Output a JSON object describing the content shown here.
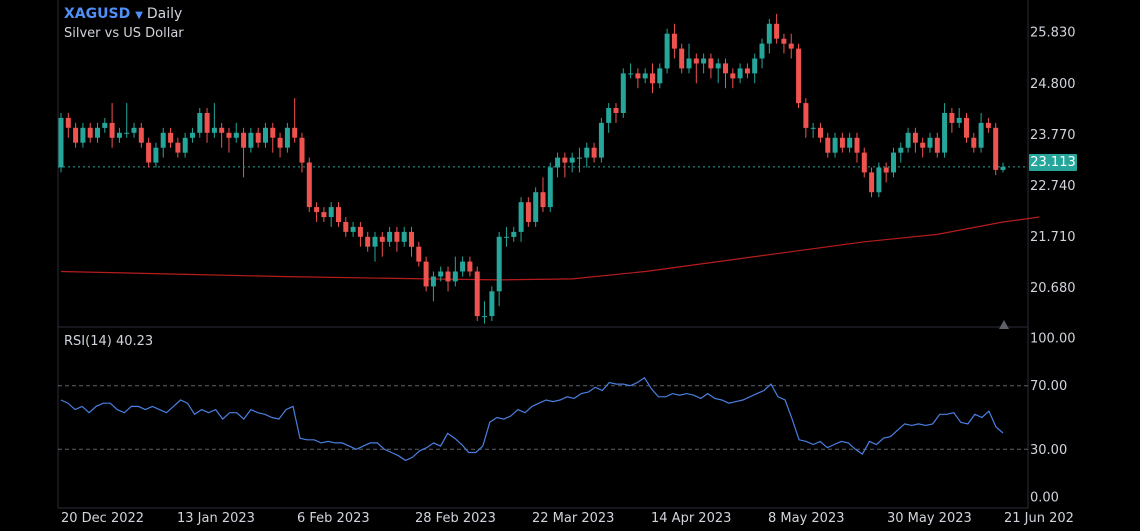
{
  "header": {
    "symbol": "XAGUSD",
    "interval": "Daily",
    "description": "Silver vs US Dollar"
  },
  "rsi_panel": {
    "label": "RSI(14)",
    "value": "40.23"
  },
  "last_price_label": "23.113",
  "colors": {
    "up": "#26a69a",
    "down": "#ef5350",
    "ma": "#b71c1c",
    "rsi": "#4a7fe0",
    "accent": "#4f8ff7"
  },
  "chart_data": [
    {
      "type": "candlestick",
      "title": "XAGUSD Daily",
      "subtitle": "Silver vs US Dollar",
      "x_tick_labels": [
        "20 Dec 2022",
        "13 Jan 2023",
        "6 Feb 2023",
        "28 Feb 2023",
        "22 Mar 2023",
        "14 Apr 2023",
        "8 May 2023",
        "30 May 2023",
        "21 Jun 202"
      ],
      "y_tick_labels": [
        "25.830",
        "24.800",
        "23.770",
        "22.740",
        "21.710",
        "20.680"
      ],
      "ylim": [
        19.9,
        26.4
      ],
      "last_price": 23.113,
      "series": [
        {
          "name": "candles",
          "ohlc": [
            [
              23.1,
              24.1,
              24.2,
              23.0
            ],
            [
              24.1,
              23.9,
              24.2,
              23.7
            ],
            [
              23.9,
              23.6,
              24.0,
              23.5
            ],
            [
              23.6,
              23.9,
              24.0,
              23.5
            ],
            [
              23.9,
              23.7,
              24.0,
              23.6
            ],
            [
              23.7,
              23.9,
              24.0,
              23.6
            ],
            [
              23.9,
              24.0,
              24.1,
              23.8
            ],
            [
              24.0,
              23.7,
              24.4,
              23.5
            ],
            [
              23.7,
              23.8,
              23.9,
              23.6
            ],
            [
              23.8,
              23.8,
              24.4,
              23.7
            ],
            [
              23.8,
              23.9,
              24.0,
              23.7
            ],
            [
              23.9,
              23.6,
              24.0,
              23.5
            ],
            [
              23.6,
              23.2,
              23.7,
              23.1
            ],
            [
              23.2,
              23.5,
              23.6,
              23.1
            ],
            [
              23.5,
              23.8,
              23.9,
              23.3
            ],
            [
              23.8,
              23.6,
              23.9,
              23.5
            ],
            [
              23.6,
              23.4,
              23.7,
              23.3
            ],
            [
              23.4,
              23.7,
              23.8,
              23.3
            ],
            [
              23.7,
              23.8,
              23.9,
              23.6
            ],
            [
              23.8,
              24.2,
              24.3,
              23.7
            ],
            [
              24.2,
              23.8,
              24.3,
              23.6
            ],
            [
              23.8,
              23.9,
              24.4,
              23.7
            ],
            [
              23.9,
              23.8,
              24.0,
              23.5
            ],
            [
              23.8,
              23.7,
              23.9,
              23.4
            ],
            [
              23.7,
              23.8,
              24.0,
              23.6
            ],
            [
              23.8,
              23.5,
              23.9,
              22.9
            ],
            [
              23.5,
              23.8,
              23.9,
              23.4
            ],
            [
              23.8,
              23.6,
              23.9,
              23.5
            ],
            [
              23.6,
              23.9,
              24.0,
              23.5
            ],
            [
              23.9,
              23.7,
              24.0,
              23.4
            ],
            [
              23.7,
              23.5,
              23.8,
              23.3
            ],
            [
              23.5,
              23.9,
              24.0,
              23.4
            ],
            [
              23.9,
              23.7,
              24.5,
              23.6
            ],
            [
              23.7,
              23.2,
              23.8,
              23.0
            ],
            [
              23.2,
              22.3,
              23.3,
              22.2
            ],
            [
              22.3,
              22.2,
              22.4,
              22.0
            ],
            [
              22.2,
              22.1,
              22.3,
              22.0
            ],
            [
              22.1,
              22.3,
              22.4,
              21.9
            ],
            [
              22.3,
              22.0,
              22.4,
              21.9
            ],
            [
              22.0,
              21.8,
              22.1,
              21.7
            ],
            [
              21.8,
              21.9,
              22.0,
              21.7
            ],
            [
              21.9,
              21.7,
              22.0,
              21.5
            ],
            [
              21.7,
              21.5,
              21.8,
              21.4
            ],
            [
              21.5,
              21.7,
              21.8,
              21.2
            ],
            [
              21.7,
              21.6,
              21.8,
              21.3
            ],
            [
              21.6,
              21.8,
              21.9,
              21.5
            ],
            [
              21.8,
              21.6,
              21.9,
              21.4
            ],
            [
              21.6,
              21.8,
              21.9,
              21.5
            ],
            [
              21.8,
              21.5,
              21.9,
              21.3
            ],
            [
              21.5,
              21.2,
              21.6,
              21.1
            ],
            [
              21.2,
              20.7,
              21.3,
              20.6
            ],
            [
              20.7,
              20.9,
              21.0,
              20.4
            ],
            [
              20.9,
              21.0,
              21.1,
              20.8
            ],
            [
              21.0,
              20.8,
              21.1,
              20.6
            ],
            [
              20.8,
              21.0,
              21.3,
              20.7
            ],
            [
              21.0,
              21.2,
              21.3,
              20.9
            ],
            [
              21.2,
              21.0,
              21.3,
              20.9
            ],
            [
              21.0,
              20.1,
              21.1,
              20.0
            ],
            [
              20.1,
              20.1,
              20.4,
              19.95
            ],
            [
              20.1,
              20.6,
              20.7,
              20.0
            ],
            [
              20.6,
              21.7,
              21.8,
              20.3
            ],
            [
              21.7,
              21.7,
              21.9,
              21.5
            ],
            [
              21.7,
              21.8,
              21.9,
              21.6
            ],
            [
              21.8,
              22.4,
              22.5,
              21.6
            ],
            [
              22.4,
              22.0,
              22.5,
              21.9
            ],
            [
              22.0,
              22.6,
              22.7,
              21.9
            ],
            [
              22.6,
              22.3,
              22.9,
              22.2
            ],
            [
              22.3,
              23.1,
              23.2,
              22.2
            ],
            [
              23.1,
              23.3,
              23.4,
              22.9
            ],
            [
              23.3,
              23.2,
              23.4,
              22.9
            ],
            [
              23.2,
              23.3,
              23.4,
              23.0
            ],
            [
              23.3,
              23.3,
              23.5,
              23.0
            ],
            [
              23.3,
              23.5,
              23.6,
              23.1
            ],
            [
              23.5,
              23.3,
              23.6,
              23.2
            ],
            [
              23.3,
              24.0,
              24.1,
              23.2
            ],
            [
              24.0,
              24.3,
              24.4,
              23.8
            ],
            [
              24.3,
              24.2,
              24.4,
              24.0
            ],
            [
              24.2,
              25.0,
              25.1,
              24.1
            ],
            [
              25.0,
              25.0,
              25.2,
              24.9
            ],
            [
              25.0,
              24.9,
              25.1,
              24.7
            ],
            [
              24.9,
              25.0,
              25.1,
              24.8
            ],
            [
              25.0,
              24.8,
              25.2,
              24.6
            ],
            [
              24.8,
              25.1,
              25.2,
              24.7
            ],
            [
              25.1,
              25.8,
              25.9,
              25.0
            ],
            [
              25.8,
              25.5,
              26.0,
              25.3
            ],
            [
              25.5,
              25.1,
              25.6,
              25.0
            ],
            [
              25.1,
              25.3,
              25.6,
              25.0
            ],
            [
              25.3,
              25.2,
              25.4,
              24.8
            ],
            [
              25.2,
              25.3,
              25.4,
              25.0
            ],
            [
              25.3,
              25.1,
              25.4,
              24.9
            ],
            [
              25.1,
              25.2,
              25.3,
              24.8
            ],
            [
              25.2,
              25.0,
              25.3,
              24.7
            ],
            [
              25.0,
              24.9,
              25.1,
              24.7
            ],
            [
              24.9,
              25.1,
              25.2,
              24.8
            ],
            [
              25.1,
              25.0,
              25.2,
              24.9
            ],
            [
              25.0,
              25.3,
              25.4,
              24.8
            ],
            [
              25.3,
              25.6,
              25.7,
              25.1
            ],
            [
              25.6,
              26.0,
              26.1,
              25.4
            ],
            [
              26.0,
              25.7,
              26.2,
              25.6
            ],
            [
              25.7,
              25.6,
              25.8,
              25.4
            ],
            [
              25.6,
              25.5,
              25.8,
              25.3
            ],
            [
              25.5,
              24.4,
              25.6,
              24.3
            ],
            [
              24.4,
              23.9,
              24.5,
              23.7
            ],
            [
              23.9,
              23.9,
              24.0,
              23.7
            ],
            [
              23.9,
              23.7,
              24.0,
              23.6
            ],
            [
              23.7,
              23.4,
              23.8,
              23.3
            ],
            [
              23.4,
              23.7,
              23.8,
              23.3
            ],
            [
              23.7,
              23.5,
              23.8,
              23.4
            ],
            [
              23.5,
              23.7,
              23.8,
              23.4
            ],
            [
              23.7,
              23.4,
              23.8,
              23.2
            ],
            [
              23.4,
              23.0,
              23.5,
              22.9
            ],
            [
              23.0,
              22.6,
              23.1,
              22.5
            ],
            [
              22.6,
              23.1,
              23.2,
              22.5
            ],
            [
              23.1,
              23.0,
              23.2,
              22.8
            ],
            [
              23.0,
              23.4,
              23.5,
              22.9
            ],
            [
              23.4,
              23.5,
              23.6,
              23.2
            ],
            [
              23.5,
              23.8,
              23.9,
              23.4
            ],
            [
              23.8,
              23.6,
              23.9,
              23.4
            ],
            [
              23.6,
              23.5,
              23.7,
              23.3
            ],
            [
              23.5,
              23.7,
              23.8,
              23.4
            ],
            [
              23.7,
              23.4,
              23.8,
              23.3
            ],
            [
              23.4,
              24.2,
              24.4,
              23.3
            ],
            [
              24.2,
              24.0,
              24.3,
              23.8
            ],
            [
              24.0,
              24.1,
              24.3,
              23.9
            ],
            [
              24.1,
              23.7,
              24.2,
              23.6
            ],
            [
              23.7,
              23.5,
              23.8,
              23.4
            ],
            [
              23.5,
              24.0,
              24.2,
              23.4
            ],
            [
              24.0,
              23.9,
              24.1,
              23.8
            ],
            [
              23.9,
              23.05,
              24.0,
              22.95
            ],
            [
              23.05,
              23.113,
              23.2,
              23.0
            ]
          ]
        },
        {
          "name": "ma",
          "points": [
            [
              0,
              21.0
            ],
            [
              15,
              20.95
            ],
            [
              30,
              20.9
            ],
            [
              50,
              20.85
            ],
            [
              60,
              20.83
            ],
            [
              70,
              20.85
            ],
            [
              80,
              21.0
            ],
            [
              90,
              21.2
            ],
            [
              100,
              21.4
            ],
            [
              110,
              21.6
            ],
            [
              120,
              21.75
            ],
            [
              129,
              22.0
            ],
            [
              134,
              22.1
            ]
          ]
        }
      ]
    },
    {
      "type": "line",
      "title": "RSI(14)",
      "y_tick_labels": [
        "100.00",
        "70.00",
        "30.00",
        "0.00"
      ],
      "ylim": [
        0,
        100
      ],
      "guides": [
        70,
        30
      ],
      "series": [
        {
          "name": "RSI(14)",
          "values": [
            61,
            59,
            55,
            57,
            53,
            57,
            59,
            59,
            55,
            53,
            57,
            57,
            55,
            57,
            55,
            53,
            57,
            61,
            59,
            52,
            55,
            53,
            55,
            49,
            53,
            53,
            49,
            55,
            53,
            52,
            50,
            49,
            55,
            57,
            37,
            36,
            36,
            34,
            35,
            34,
            34,
            32,
            30,
            32,
            34,
            34,
            30,
            28,
            26,
            23,
            25,
            29,
            31,
            34,
            32,
            40,
            37,
            33,
            28,
            28,
            32,
            47,
            50,
            49,
            51,
            55,
            53,
            57,
            59,
            61,
            60,
            61,
            63,
            62,
            65,
            66,
            69,
            67,
            72,
            71,
            71,
            70,
            72,
            75,
            68,
            63,
            63,
            65,
            64,
            65,
            64,
            62,
            65,
            62,
            61,
            59,
            60,
            61,
            63,
            65,
            67,
            71,
            63,
            61,
            49,
            36,
            35,
            33,
            35,
            31,
            33,
            35,
            34,
            30,
            27,
            35,
            33,
            37,
            38,
            42,
            46,
            45,
            46,
            45,
            46,
            52,
            52,
            53,
            47,
            46,
            52,
            50,
            54,
            44,
            40.23
          ]
        }
      ]
    }
  ]
}
